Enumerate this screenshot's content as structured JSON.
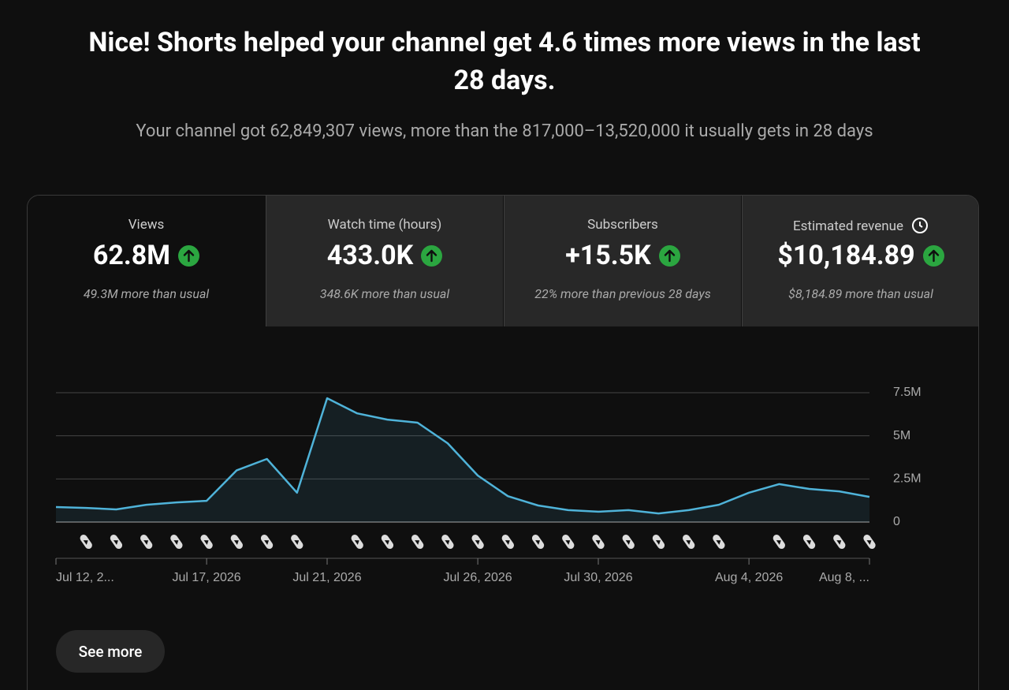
{
  "header": {
    "title": "Nice! Shorts helped your channel get 4.6 times more views in the last 28 days.",
    "subtitle": "Your channel got 62,849,307 views, more than the 817,000–13,520,000 it usually gets in 28 days"
  },
  "metrics": [
    {
      "label": "Views",
      "value": "62.8M",
      "note": "49.3M more than usual"
    },
    {
      "label": "Watch time (hours)",
      "value": "433.0K",
      "note": "348.6K more than usual"
    },
    {
      "label": "Subscribers",
      "value": "+15.5K",
      "note": "22% more than previous 28 days"
    },
    {
      "label": "Estimated revenue",
      "value": "$10,184.89",
      "note": "$8,184.89 more than usual"
    }
  ],
  "chart_data": {
    "type": "line",
    "categories": [
      "Jul 12, 2...",
      null,
      null,
      null,
      null,
      "Jul 17, 2026",
      null,
      null,
      null,
      "Jul 21, 2026",
      null,
      null,
      null,
      null,
      "Jul 26, 2026",
      null,
      null,
      null,
      "Jul 30, 2026",
      null,
      null,
      null,
      null,
      "Aug 4, 2026",
      null,
      null,
      null,
      "Aug 8, ..."
    ],
    "series": [
      {
        "name": "Views",
        "color": "#4fb3d9",
        "values": [
          870000,
          820000,
          730000,
          1000000,
          1140000,
          1230000,
          3000000,
          3660000,
          1700000,
          7180000,
          6300000,
          5940000,
          5760000,
          4570000,
          2700000,
          1500000,
          960000,
          690000,
          600000,
          690000,
          500000,
          690000,
          1000000,
          1700000,
          2200000,
          1920000,
          1780000,
          1460000
        ]
      }
    ],
    "ylim": [
      0,
      7500000
    ],
    "yticks": [
      {
        "value": 0,
        "label": "0"
      },
      {
        "value": 2500000,
        "label": "2.5M"
      },
      {
        "value": 5000000,
        "label": "5M"
      },
      {
        "value": 7500000,
        "label": "7.5M"
      }
    ],
    "grid": true
  },
  "button": "See more"
}
